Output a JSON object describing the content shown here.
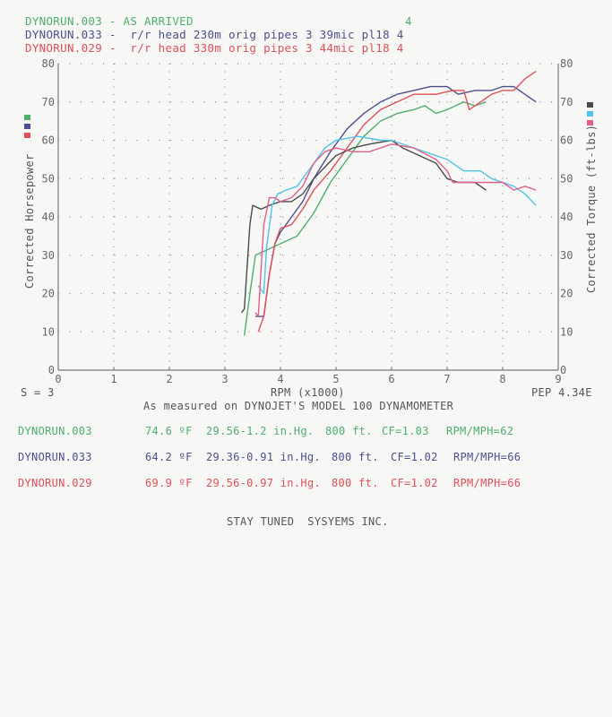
{
  "header": {
    "runs": [
      {
        "label": "DYNORUN.003 - AS ARRIVED",
        "suffix": "4",
        "color": "#4fae6e"
      },
      {
        "label": "DYNORUN.033 -  r/r head 230m orig pipes 3 39mic pl18 4",
        "suffix": "",
        "color": "#4d4f8f"
      },
      {
        "label": "DYNORUN.029 -  r/r head 330m orig pipes 3 44mic pl18 4",
        "suffix": "",
        "color": "#e0505a"
      }
    ]
  },
  "footer": {
    "smoothing": "S = 3",
    "version": "PEP 4.34E",
    "measured_note": "As measured on DYNOJET'S MODEL 100 DYNAMOMETER",
    "conditions": [
      {
        "run": "DYNORUN.003",
        "temp": "74.6 ºF",
        "baro": "29.56-1.2 in.Hg.",
        "alt": "800 ft.",
        "cf": "CF=1.03",
        "ratio": "RPM/MPH=62",
        "color": "#4fae6e"
      },
      {
        "run": "DYNORUN.033",
        "temp": "64.2 ºF",
        "baro": "29.36-0.91 in.Hg.",
        "alt": "800 ft.",
        "cf": "CF=1.02",
        "ratio": "RPM/MPH=66",
        "color": "#4d4f8f"
      },
      {
        "run": "DYNORUN.029",
        "temp": "69.9 ºF",
        "baro": "29.56-0.97 in.Hg.",
        "alt": "800 ft.",
        "cf": "CF=1.02",
        "ratio": "RPM/MPH=66",
        "color": "#e0505a"
      }
    ],
    "company": "STAY TUNED  SYSYEMS INC."
  },
  "chart_data": {
    "type": "line",
    "title": "",
    "xlabel": "RPM (x1000)",
    "ylabel": "Corrected Horsepower",
    "ylabel_right": "Corrected Torque (ft-lbs)",
    "xlim": [
      0,
      9
    ],
    "ylim": [
      0,
      80
    ],
    "ylim_right": [
      0,
      80
    ],
    "x_ticks": [
      "0",
      "1",
      "2",
      "3",
      "4",
      "5",
      "6",
      "7",
      "8",
      "9"
    ],
    "y_ticks": [
      "0",
      "10",
      "20",
      "30",
      "40",
      "50",
      "60",
      "70",
      "80"
    ],
    "grid": "dotted",
    "legend_left_colors": [
      "#4fae6e",
      "#4d4f8f",
      "#e0505a"
    ],
    "legend_right_colors": [
      "#4a4a4a",
      "#4fc3e8",
      "#e0608a"
    ],
    "series": [
      {
        "name": "DYNORUN.003 HP",
        "axis": "left",
        "color": "#4fae6e",
        "x": [
          3.35,
          3.45,
          3.55,
          3.7,
          4.0,
          4.3,
          4.6,
          4.9,
          5.2,
          5.5,
          5.8,
          6.1,
          6.4,
          6.6,
          6.8,
          7.0,
          7.3,
          7.5,
          7.7
        ],
        "y": [
          9,
          20,
          30,
          31,
          33,
          35,
          41,
          49,
          55,
          61,
          65,
          67,
          68,
          69,
          67,
          68,
          70,
          69,
          70
        ]
      },
      {
        "name": "DYNORUN.033 HP",
        "axis": "left",
        "color": "#4d4f8f",
        "x": [
          3.55,
          3.7,
          3.8,
          3.9,
          4.0,
          4.2,
          4.4,
          4.6,
          4.9,
          5.2,
          5.5,
          5.8,
          6.1,
          6.4,
          6.7,
          7.0,
          7.2,
          7.5,
          7.8,
          8.0,
          8.2,
          8.4,
          8.6
        ],
        "y": [
          14,
          14,
          25,
          33,
          36,
          40,
          44,
          50,
          57,
          63,
          67,
          70,
          72,
          73,
          74,
          74,
          72,
          73,
          73,
          74,
          74,
          72,
          70
        ]
      },
      {
        "name": "DYNORUN.029 HP",
        "axis": "left",
        "color": "#e0505a",
        "x": [
          3.6,
          3.7,
          3.8,
          3.9,
          4.0,
          4.2,
          4.4,
          4.6,
          4.9,
          5.2,
          5.5,
          5.8,
          6.1,
          6.4,
          6.8,
          7.1,
          7.3,
          7.4,
          7.6,
          7.8,
          8.0,
          8.2,
          8.4,
          8.6
        ],
        "y": [
          10,
          14,
          25,
          33,
          37,
          38,
          42,
          47,
          52,
          58,
          64,
          68,
          70,
          72,
          72,
          73,
          73,
          68,
          70,
          72,
          73,
          73,
          76,
          78
        ]
      },
      {
        "name": "DYNORUN.003 Torque",
        "axis": "right",
        "color": "#4a4a4a",
        "x": [
          3.3,
          3.35,
          3.45,
          3.5,
          3.65,
          3.8,
          4.0,
          4.2,
          4.4,
          4.6,
          4.8,
          5.0,
          5.3,
          5.6,
          6.0,
          6.2,
          6.5,
          6.8,
          7.0,
          7.2,
          7.5,
          7.7
        ],
        "y": [
          15,
          16,
          38,
          43,
          42,
          43,
          44,
          44,
          46,
          50,
          53,
          56,
          58,
          59,
          60,
          58,
          56,
          54,
          50,
          49,
          49,
          47
        ]
      },
      {
        "name": "DYNORUN.033 Torque",
        "axis": "right",
        "color": "#4fc3e8",
        "x": [
          3.6,
          3.7,
          3.75,
          3.85,
          3.95,
          4.1,
          4.3,
          4.6,
          4.8,
          5.0,
          5.4,
          5.8,
          6.0,
          6.4,
          6.8,
          7.0,
          7.3,
          7.6,
          7.8,
          8.0,
          8.2,
          8.4,
          8.6
        ],
        "y": [
          22,
          20,
          32,
          43,
          46,
          47,
          48,
          54,
          58,
          60,
          61,
          60,
          60,
          58,
          56,
          55,
          52,
          52,
          50,
          49,
          48,
          46,
          43
        ]
      },
      {
        "name": "DYNORUN.029 Torque",
        "axis": "right",
        "color": "#e0608a",
        "x": [
          3.55,
          3.6,
          3.7,
          3.8,
          3.9,
          4.0,
          4.2,
          4.4,
          4.6,
          4.8,
          5.0,
          5.3,
          5.6,
          6.0,
          6.4,
          6.8,
          7.0,
          7.1,
          7.3,
          7.6,
          8.0,
          8.2,
          8.4,
          8.6
        ],
        "y": [
          15,
          14,
          38,
          45,
          45,
          44,
          45,
          48,
          54,
          57,
          58,
          57,
          57,
          59,
          58,
          55,
          52,
          49,
          49,
          49,
          49,
          47,
          48,
          47
        ]
      }
    ]
  }
}
